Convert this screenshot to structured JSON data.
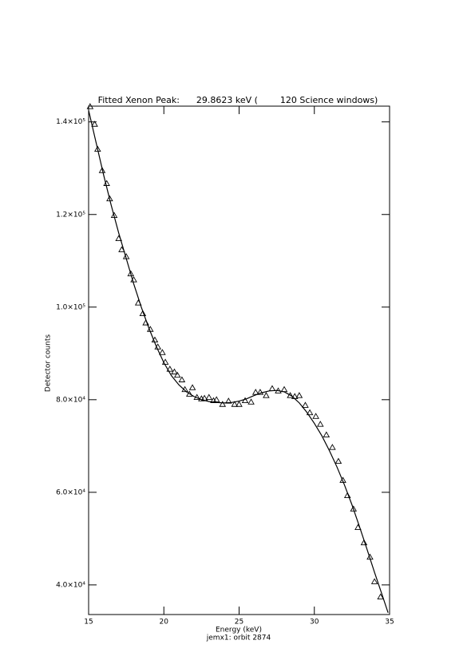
{
  "chart_data": {
    "type": "scatter",
    "title": "Fitted Xenon Peak:      29.8623 keV (        120 Science windows)",
    "x_label": "Energy (keV)",
    "subtitle": "jemx1: orbit 2874",
    "y_label": "Detector counts",
    "xlim": [
      15,
      35
    ],
    "ylim": [
      33600,
      143400
    ],
    "xticks": [
      15,
      20,
      25,
      30,
      35
    ],
    "yticks": [
      {
        "value": 40000,
        "label": "4.0×10⁴"
      },
      {
        "value": 60000,
        "label": "6.0×10⁴"
      },
      {
        "value": 80000,
        "label": "8.0×10⁴"
      },
      {
        "value": 100000,
        "label": "1.0×10⁵"
      },
      {
        "value": 120000,
        "label": "1.2×10⁵"
      },
      {
        "value": 140000,
        "label": "1.4×10⁵"
      }
    ],
    "series": [
      {
        "style": "triangle",
        "color": "#000000",
        "x": [
          15.1,
          15.4,
          15.6,
          15.9,
          16.2,
          16.4,
          16.7,
          17.0,
          17.2,
          17.5,
          17.8,
          18.0,
          18.3,
          18.6,
          18.8,
          19.1,
          19.4,
          19.6,
          19.9,
          20.1,
          20.4,
          20.7,
          20.9,
          21.2,
          21.4,
          21.7,
          21.9,
          22.2,
          22.5,
          22.7,
          23.0,
          23.3,
          23.5,
          23.9,
          24.3,
          24.7,
          25.0,
          25.4,
          25.8,
          26.1,
          26.4,
          26.8,
          27.2,
          27.6,
          28.0,
          28.4,
          28.7,
          29.0,
          29.4,
          29.7,
          30.1,
          30.4,
          30.8,
          31.2,
          31.6,
          31.9,
          32.2,
          32.6,
          32.9,
          33.3,
          33.7,
          34.0,
          34.4
        ],
        "values": [
          143300,
          139500,
          134100,
          129500,
          126700,
          123400,
          119800,
          114800,
          112400,
          110900,
          107200,
          105900,
          100900,
          98600,
          96600,
          95200,
          92900,
          91400,
          90200,
          88100,
          86600,
          86000,
          85300,
          84300,
          82200,
          81200,
          82600,
          80500,
          80200,
          80300,
          80500,
          79800,
          80000,
          79000,
          79700,
          79000,
          79000,
          79800,
          79500,
          81600,
          81600,
          80900,
          82400,
          81900,
          82200,
          80900,
          80700,
          80900,
          78800,
          77200,
          76400,
          74700,
          72400,
          69700,
          66700,
          62600,
          59300,
          56400,
          52400,
          49100,
          46000,
          40700,
          37400
        ]
      },
      {
        "style": "line",
        "color": "#000000",
        "x": [
          15,
          15.5,
          16,
          16.5,
          17,
          17.5,
          18,
          18.5,
          19,
          19.5,
          20,
          20.5,
          21,
          21.5,
          22,
          22.5,
          23,
          23.5,
          24,
          24.5,
          25,
          25.5,
          26,
          26.5,
          27,
          27.5,
          28,
          28.5,
          29,
          29.5,
          30,
          30.5,
          31,
          31.5,
          32,
          32.5,
          33,
          33.5,
          34,
          34.5,
          34.9
        ],
        "values": [
          142500,
          135500,
          128500,
          122000,
          116000,
          110500,
          105000,
          100000,
          95500,
          91500,
          88000,
          85200,
          83200,
          81700,
          80700,
          80000,
          79600,
          79400,
          79300,
          79400,
          79700,
          80200,
          80900,
          81500,
          81900,
          82000,
          81700,
          80800,
          79300,
          77300,
          74900,
          72200,
          69000,
          65500,
          61600,
          57300,
          52600,
          47700,
          42700,
          37900,
          34000
        ]
      }
    ]
  }
}
